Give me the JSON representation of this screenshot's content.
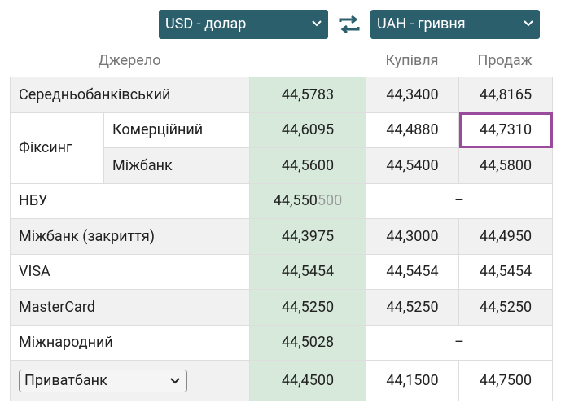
{
  "controls": {
    "from_currency": "USD - долар",
    "to_currency": "UAH - гривня"
  },
  "table": {
    "header": {
      "source": "Джерело",
      "buy": "Купівля",
      "sell": "Продаж"
    },
    "rows": [
      {
        "source": "Середньобанківський",
        "rate": "44,5783",
        "buy": "44,3400",
        "sell": "44,8165"
      },
      {
        "group": "Фіксинг",
        "source": "Комерційний",
        "rate": "44,6095",
        "buy": "44,4880",
        "sell": "44,7310"
      },
      {
        "source": "Міжбанк",
        "rate": "44,5600",
        "buy": "44,5400",
        "sell": "44,5800"
      },
      {
        "source": "НБУ",
        "rate": "44,550",
        "rate_extra": "500",
        "buy_sell": "–"
      },
      {
        "source": "Міжбанк (закриття)",
        "rate": "44,3975",
        "buy": "44,3000",
        "sell": "44,4950"
      },
      {
        "source": "VISA",
        "rate": "44,5454",
        "buy": "44,5454",
        "sell": "44,5454"
      },
      {
        "source": "MasterCard",
        "rate": "44,5250",
        "buy": "44,5250",
        "sell": "44,5250"
      },
      {
        "source": "Міжнародний",
        "rate": "44,5028",
        "buy_sell": "–"
      },
      {
        "source": "Приватбанк",
        "rate": "44,4500",
        "buy": "44,1500",
        "sell": "44,7500"
      }
    ]
  }
}
